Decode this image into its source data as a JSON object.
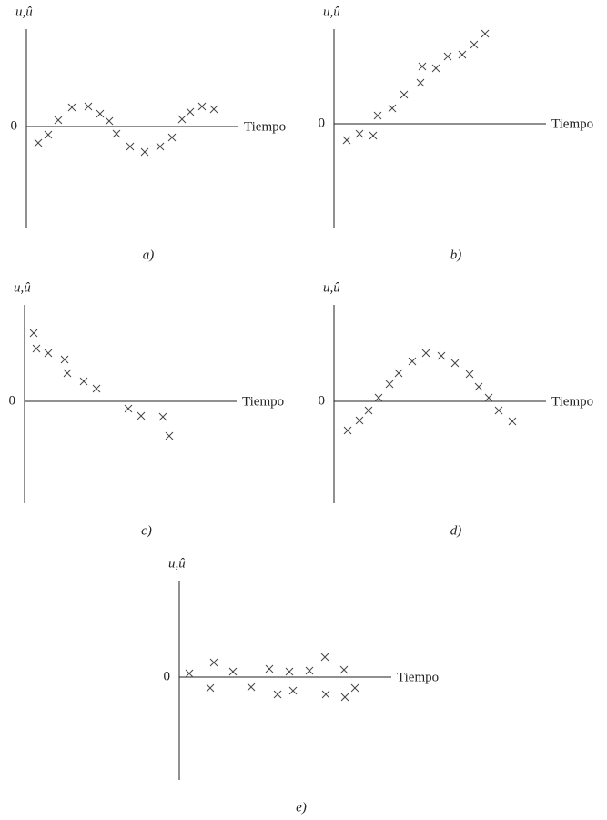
{
  "chart_data": [
    {
      "type": "scatter",
      "y_label": "u,û",
      "x_label": "Tiempo",
      "caption": "a)",
      "marker": "x",
      "color": "#444444",
      "xlim": [
        0,
        23.3
      ],
      "ylim": [
        -11.1,
        10.7
      ],
      "yticks": [
        0
      ],
      "x": [
        1.3,
        2.4,
        3.5,
        5.0,
        6.8,
        8.1,
        9.1,
        9.9,
        11.4,
        13.0,
        14.7,
        16.0,
        17.1,
        18.0,
        19.3,
        20.6
      ],
      "values": [
        -1.8,
        -0.9,
        0.7,
        2.1,
        2.2,
        1.4,
        0.6,
        -0.8,
        -2.2,
        -2.8,
        -2.2,
        -1.2,
        0.8,
        1.6,
        2.2,
        1.9
      ]
    },
    {
      "type": "scatter",
      "y_label": "u,û",
      "x_label": "Tiempo",
      "caption": "b)",
      "marker": "x",
      "color": "#444444",
      "xlim": [
        0,
        23.3
      ],
      "ylim": [
        -11.4,
        10.4
      ],
      "yticks": [
        0
      ],
      "x": [
        1.4,
        2.8,
        4.3,
        4.8,
        6.4,
        7.7,
        9.5,
        9.7,
        11.2,
        12.5,
        14.1,
        15.4,
        16.6
      ],
      "values": [
        -1.8,
        -1.1,
        -1.3,
        0.9,
        1.7,
        3.2,
        4.5,
        6.3,
        6.1,
        7.4,
        7.6,
        8.7,
        9.9
      ]
    },
    {
      "type": "scatter",
      "y_label": "u,û",
      "x_label": "Tiempo",
      "caption": "c)",
      "marker": "x",
      "color": "#444444",
      "xlim": [
        0,
        23.3
      ],
      "ylim": [
        -11.2,
        10.6
      ],
      "yticks": [
        0
      ],
      "x": [
        1.0,
        1.3,
        2.6,
        4.4,
        4.7,
        6.5,
        7.9,
        11.4,
        12.8,
        15.2,
        15.9
      ],
      "values": [
        7.5,
        5.8,
        5.3,
        4.6,
        3.1,
        2.2,
        1.4,
        -0.8,
        -1.6,
        -1.7,
        -3.8
      ]
    },
    {
      "type": "scatter",
      "y_label": "u,û",
      "x_label": "Tiempo",
      "caption": "d)",
      "marker": "x",
      "color": "#444444",
      "xlim": [
        0,
        23.3
      ],
      "ylim": [
        -11.2,
        10.6
      ],
      "yticks": [
        0
      ],
      "x": [
        1.5,
        2.8,
        3.8,
        4.9,
        6.1,
        7.1,
        8.6,
        10.1,
        11.8,
        13.3,
        14.9,
        15.9,
        17.0,
        18.1,
        19.6
      ],
      "values": [
        -3.2,
        -2.1,
        -1.0,
        0.4,
        1.9,
        3.1,
        4.4,
        5.3,
        5.0,
        4.2,
        3.0,
        1.6,
        0.4,
        -1.0,
        -2.2
      ]
    },
    {
      "type": "scatter",
      "y_label": "u,û",
      "x_label": "Tiempo",
      "caption": "e)",
      "marker": "x",
      "color": "#444444",
      "xlim": [
        0,
        23.3
      ],
      "ylim": [
        -11.3,
        10.6
      ],
      "yticks": [
        0
      ],
      "x": [
        1.1,
        3.4,
        3.8,
        5.9,
        7.9,
        9.9,
        10.8,
        12.1,
        12.5,
        14.3,
        16.0,
        16.1,
        18.1,
        18.2,
        19.3
      ],
      "values": [
        0.4,
        -1.2,
        1.6,
        0.6,
        -1.1,
        0.9,
        -1.9,
        0.6,
        -1.5,
        0.7,
        2.2,
        -1.9,
        0.8,
        -2.2,
        -1.2
      ]
    }
  ]
}
